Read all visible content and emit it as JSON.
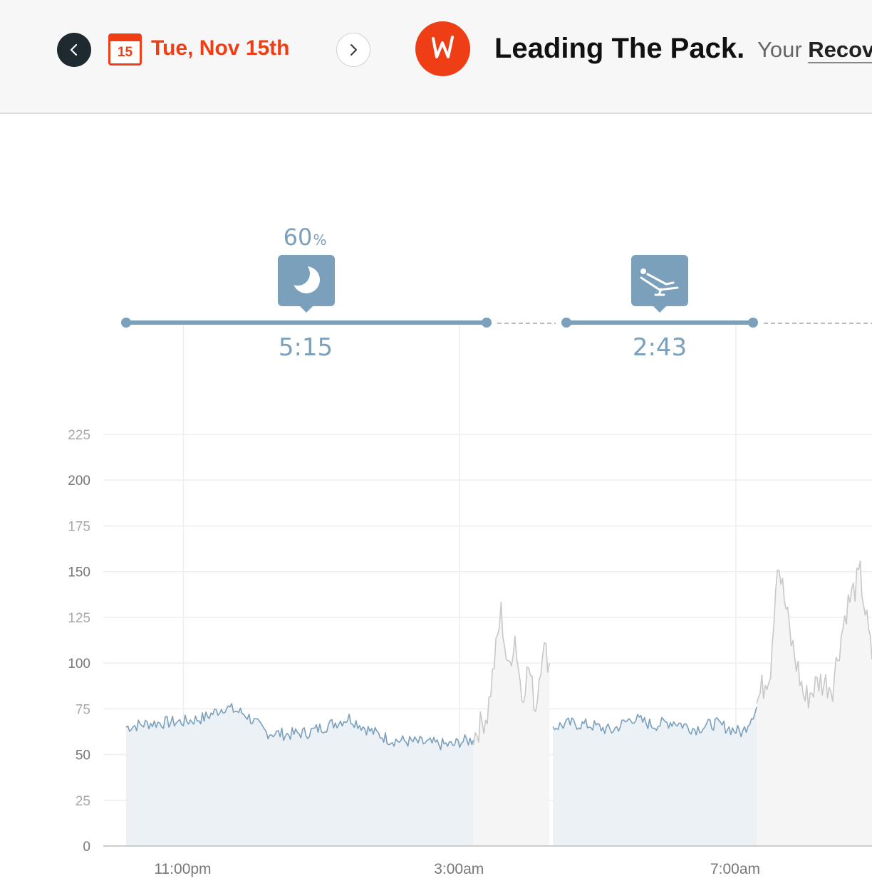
{
  "header": {
    "prev_icon": "chevron-left-icon",
    "next_icon": "chevron-right-icon",
    "calendar_day": "15",
    "date_label": "Tue, Nov 15th",
    "logo_icon": "whoop-logo-icon",
    "headline": "Leading The Pack.",
    "subline_prefix": "Your ",
    "subline_link": "Recovery"
  },
  "colors": {
    "accent": "#ef3d16",
    "sleep_blue": "#7aa0bc",
    "sleep_fill": "#ecf1f6",
    "activity_gray": "#c8c8c8",
    "activity_fill": "#f5f5f5",
    "grid": "#eeeeee",
    "axis_text": "#999999"
  },
  "timeline": {
    "sleep": {
      "percent": "60",
      "percent_unit": "%",
      "duration": "5:15",
      "icon": "moon-icon"
    },
    "nap": {
      "duration": "2:43",
      "icon": "recliner-icon"
    }
  },
  "chart_data": {
    "type": "line",
    "ylabel": "",
    "xlabel": "",
    "y_ticks": [
      "225",
      "200",
      "175",
      "150",
      "125",
      "100",
      "75",
      "50",
      "25",
      "0"
    ],
    "ylim": [
      0,
      225
    ],
    "x_ticks": [
      "11:00pm",
      "3:00am",
      "7:00am"
    ],
    "x_tick_hours": [
      23,
      27,
      31
    ],
    "xlim_hours": [
      22.17,
      32.97
    ],
    "grid": true,
    "series": [
      {
        "x": [
          22.17,
          22.5,
          23.0,
          23.3,
          23.6,
          23.9,
          24.2,
          24.5,
          24.8,
          25.1,
          25.4,
          25.7,
          26.0,
          26.3,
          26.6,
          26.9,
          27.0,
          27.2
        ],
        "y": [
          65,
          67,
          68,
          70,
          76,
          72,
          62,
          61,
          62,
          66,
          70,
          63,
          58,
          57,
          56,
          55,
          57,
          58
        ]
      },
      {
        "x": [
          27.2,
          27.4,
          27.6,
          27.7,
          27.8,
          27.9,
          28.0,
          28.1,
          28.2,
          28.3
        ],
        "y": [
          60,
          72,
          128,
          95,
          115,
          82,
          98,
          75,
          110,
          100
        ]
      },
      {
        "x": [
          28.35,
          28.6,
          28.9,
          29.2,
          29.5,
          29.8,
          30.1,
          30.4,
          30.7,
          31.0,
          31.1,
          31.3
        ],
        "y": [
          65,
          67,
          66,
          63,
          70,
          66,
          68,
          64,
          67,
          63,
          62,
          76
        ]
      },
      {
        "x": [
          31.3,
          31.5,
          31.6,
          31.8,
          32.0,
          32.2,
          32.4,
          32.5,
          32.6,
          32.8,
          32.97
        ],
        "y": [
          78,
          98,
          158,
          112,
          80,
          90,
          88,
          110,
          130,
          148,
          102
        ]
      }
    ]
  }
}
